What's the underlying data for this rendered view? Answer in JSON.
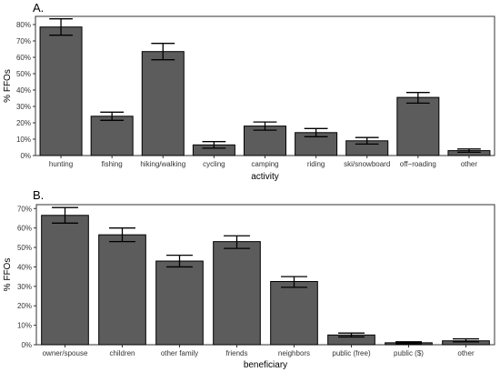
{
  "chart_data": [
    {
      "panel_label": "A.",
      "type": "bar",
      "xlabel": "activity",
      "ylabel": "% FFOs",
      "ylim": [
        0,
        85
      ],
      "yticks": [
        0,
        10,
        20,
        30,
        40,
        50,
        60,
        70,
        80
      ],
      "ytick_labels": [
        "0%",
        "10%",
        "20%",
        "30%",
        "40%",
        "50%",
        "60%",
        "70%",
        "80%"
      ],
      "categories": [
        "hunting",
        "fishing",
        "hiking/walking",
        "cycling",
        "camping",
        "riding",
        "ski/snowboard",
        "off−roading",
        "other"
      ],
      "values": [
        78.5,
        24,
        63.5,
        6.5,
        18,
        14,
        9,
        35.5,
        3
      ],
      "error_low": [
        73.5,
        21.5,
        58.5,
        4.5,
        15.5,
        11.5,
        7,
        32,
        2
      ],
      "error_high": [
        83.5,
        26.5,
        68.5,
        8.5,
        20.5,
        16.5,
        11,
        38.5,
        4
      ],
      "bar_color": "#5c5c5c",
      "grid": false
    },
    {
      "panel_label": "B.",
      "type": "bar",
      "xlabel": "beneficiary",
      "ylabel": "% FFOs",
      "ylim": [
        0,
        72
      ],
      "yticks": [
        0,
        10,
        20,
        30,
        40,
        50,
        60,
        70
      ],
      "ytick_labels": [
        "0%",
        "10%",
        "20%",
        "30%",
        "40%",
        "50%",
        "60%",
        "70%"
      ],
      "categories": [
        "owner/spouse",
        "children",
        "other family",
        "friends",
        "neighbors",
        "public (free)",
        "public ($)",
        "other"
      ],
      "values": [
        66.5,
        56.5,
        43,
        53,
        32.5,
        5,
        1,
        2
      ],
      "error_low": [
        62.5,
        53,
        40,
        49.5,
        29.5,
        4,
        0.5,
        1.5
      ],
      "error_high": [
        70.5,
        60,
        46,
        56,
        35,
        6,
        1.5,
        3
      ],
      "bar_color": "#5c5c5c",
      "grid": false
    }
  ]
}
